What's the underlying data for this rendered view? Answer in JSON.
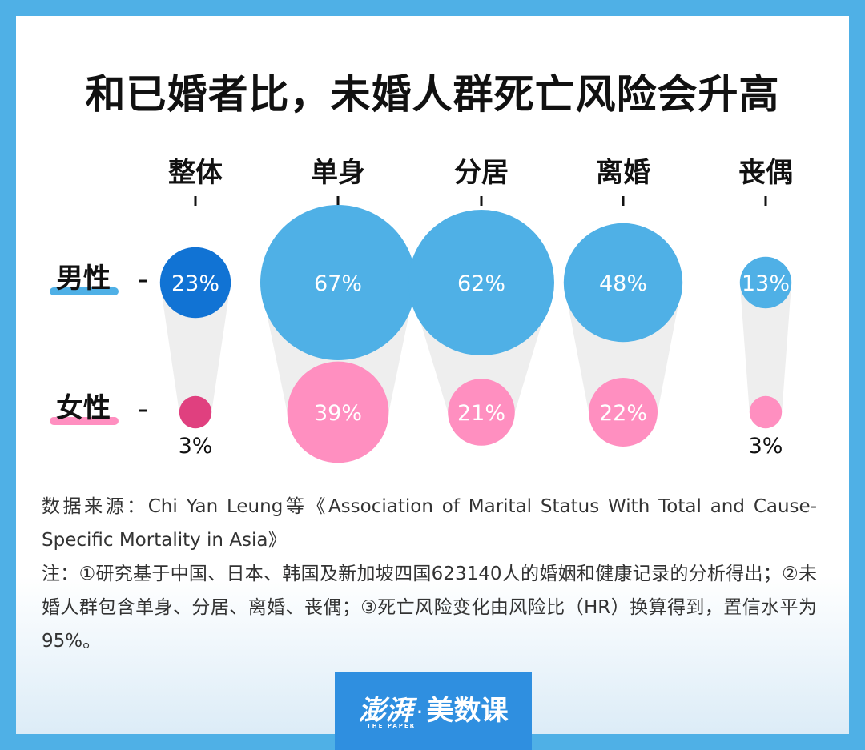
{
  "title": "和已婚者比，未婚人群死亡风险会升高",
  "chart_data": {
    "type": "bubble",
    "title": "和已婚者比，未婚人群死亡风险会升高",
    "categories": [
      "整体",
      "单身",
      "分居",
      "离婚",
      "丧偶"
    ],
    "series": [
      {
        "name": "男性",
        "values": [
          23,
          67,
          62,
          48,
          13
        ],
        "labels": [
          "23%",
          "67%",
          "62%",
          "48%",
          "13%"
        ]
      },
      {
        "name": "女性",
        "values": [
          3,
          39,
          21,
          22,
          3
        ],
        "labels": [
          "3%",
          "39%",
          "21%",
          "22%",
          "3%"
        ]
      }
    ],
    "unit": "%",
    "colors": {
      "male": "#4fb0e6",
      "male_highlight": "#1173d4",
      "female": "#ff8fc0",
      "female_highlight": "#e0407f",
      "connector": "#eeeeee",
      "male_underline": "#4fb0e6",
      "female_underline": "#ff8fc0"
    }
  },
  "notes": {
    "source": "数据来源：Chi Yan Leung等《Association of Marital Status With Total and Cause-Specific Mortality in Asia》",
    "note": "注：①研究基于中国、日本、韩国及新加坡四国623140人的婚姻和健康记录的分析得出；②未婚人群包含单身、分居、离婚、丧偶；③死亡风险变化由风险比（HR）换算得到，置信水平为95%。"
  },
  "brand": {
    "name_a": "澎湃",
    "dot": "·",
    "name_b": "美数课",
    "sub": "THE PAPER"
  }
}
